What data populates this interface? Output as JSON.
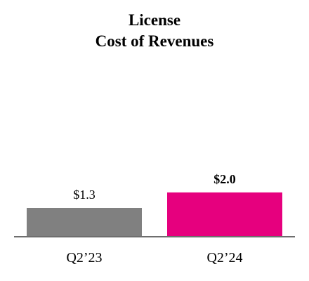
{
  "chart_data": {
    "type": "bar",
    "title_lines": [
      "License",
      "Cost of Revenues"
    ],
    "categories": [
      "Q2’23",
      "Q2’24"
    ],
    "values": [
      1.3,
      2.0
    ],
    "value_labels": [
      "$1.3",
      "$2.0"
    ],
    "value_label_bold": [
      false,
      true
    ],
    "colors": [
      "#808080",
      "#e6007e"
    ],
    "axis_color": "#6e6e6e",
    "ylim": [
      0,
      2.2
    ],
    "xlabel": "",
    "ylabel": "",
    "grid": false,
    "legend": "none"
  }
}
